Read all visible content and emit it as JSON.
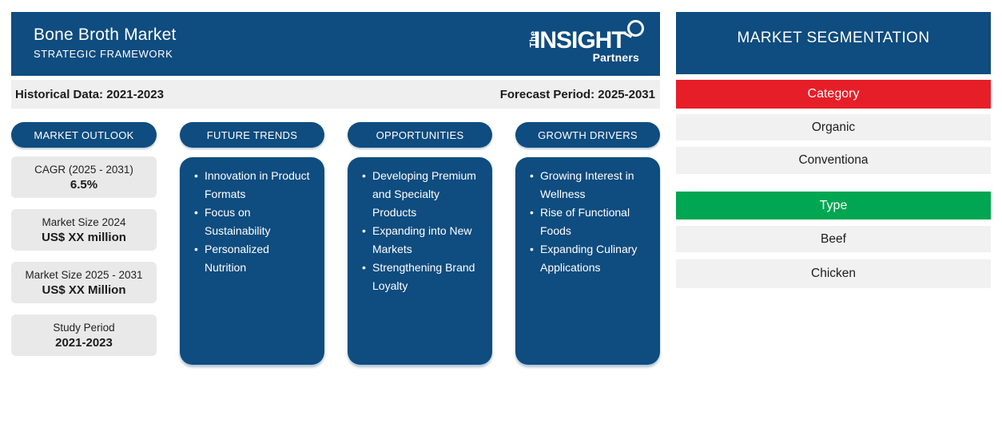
{
  "header": {
    "title": "Bone Broth Market",
    "subtitle": "STRATEGIC FRAMEWORK",
    "logo": {
      "the": "The",
      "insight": "INSIGHT",
      "partners": "Partners"
    }
  },
  "timeline": {
    "historical": "Historical Data: 2021-2023",
    "forecast": "Forecast Period: 2025-2031"
  },
  "outlook": {
    "title": "MARKET OUTLOOK",
    "cards": [
      {
        "label": "CAGR (2025 - 2031)",
        "value": "6.5%"
      },
      {
        "label": "Market Size 2024",
        "value": "US$ XX million"
      },
      {
        "label": "Market Size 2025 - 2031",
        "value": "US$ XX Million"
      },
      {
        "label": "Study Period",
        "value": "2021-2023"
      }
    ]
  },
  "columns": [
    {
      "title": "FUTURE TRENDS",
      "items": [
        "Innovation in Product Formats",
        "Focus on Sustainability",
        "Personalized Nutrition"
      ]
    },
    {
      "title": "OPPORTUNITIES",
      "items": [
        "Developing Premium and Specialty Products",
        "Expanding into New Markets",
        "Strengthening Brand Loyalty"
      ]
    },
    {
      "title": "GROWTH DRIVERS",
      "items": [
        "Growing Interest in Wellness",
        "Rise of Functional Foods",
        "Expanding Culinary Applications"
      ]
    }
  ],
  "segmentation": {
    "title": "MARKET SEGMENTATION",
    "groups": [
      {
        "label": "Category",
        "color": "#e61e28",
        "items": [
          "Organic",
          "Conventiona"
        ]
      },
      {
        "label": "Type",
        "color": "#00a651",
        "items": [
          "Beef",
          "Chicken"
        ]
      }
    ]
  },
  "colors": {
    "primary_blue": "#0f4c7f",
    "category_red": "#e61e28",
    "type_green": "#00a651",
    "bar_gray": "#efefef",
    "card_gray": "#e9e9e9",
    "row_gray": "#f1f1f1"
  }
}
